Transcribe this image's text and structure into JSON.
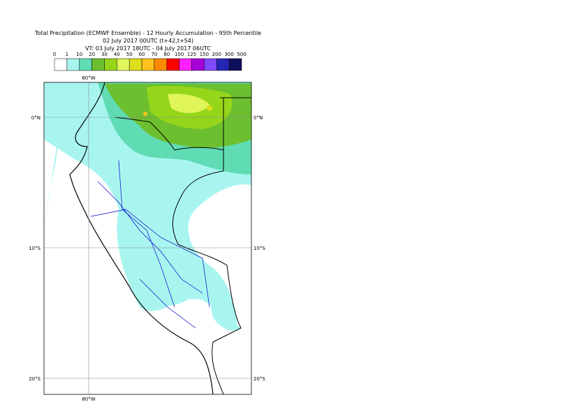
{
  "header": {
    "lines": [
      "Total Precipitation (ECMWF Ensemble) - 12 Hourly Accumulation - 95th Percentile",
      "02 July 2017 00UTC (t+42,t+54)",
      "VT: 03 July 2017 18UTC - 04 July 2017 06UTC"
    ]
  },
  "legend": {
    "labels": [
      0,
      1,
      10,
      20,
      30,
      40,
      50,
      60,
      70,
      80,
      100,
      125,
      150,
      200,
      300,
      500
    ],
    "colors": [
      "#ffffff",
      "#a8f5f0",
      "#5fdcb4",
      "#6cbf2e",
      "#95d61a",
      "#dff55a",
      "#dede1c",
      "#ffc21e",
      "#ff8a00",
      "#ff0000",
      "#ff1fff",
      "#a800d8",
      "#7f49ff",
      "#2626b4",
      "#10105a"
    ]
  },
  "map": {
    "lon_label": "80°W",
    "lat_labels": [
      "0°N",
      "10°S",
      "20°S"
    ]
  }
}
